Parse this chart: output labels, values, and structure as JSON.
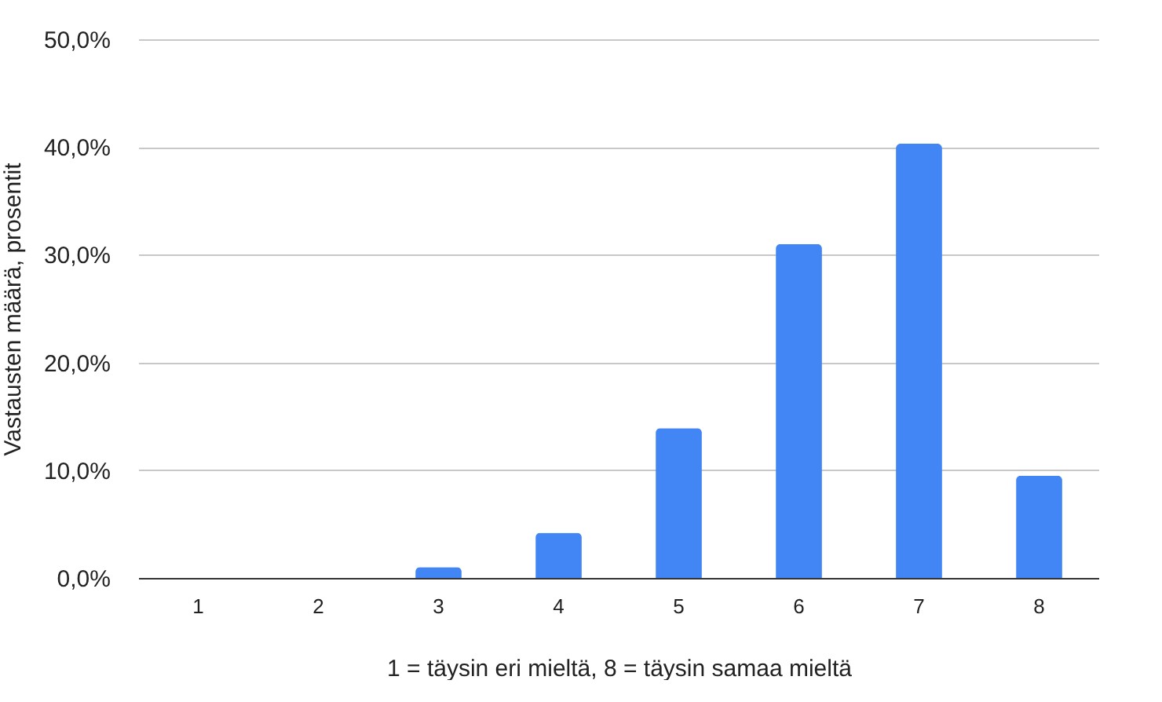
{
  "chart_data": {
    "type": "bar",
    "xlabel": "1 = täysin eri mieltä, 8 = täysin samaa mieltä",
    "ylabel": "Vastausten määrä, prosentit",
    "categories": [
      "1",
      "2",
      "3",
      "4",
      "5",
      "6",
      "7",
      "8"
    ],
    "values": [
      0,
      0,
      1.0,
      4.2,
      13.9,
      31.0,
      40.3,
      9.5
    ],
    "color": "#4285f4",
    "ylim": [
      0,
      50
    ],
    "yticks": [
      {
        "value": 0,
        "label": "0,0%"
      },
      {
        "value": 10,
        "label": "10,0%"
      },
      {
        "value": 20,
        "label": "20,0%"
      },
      {
        "value": 30,
        "label": "30,0%"
      },
      {
        "value": 40,
        "label": "40,0%"
      },
      {
        "value": 50,
        "label": "50,0%"
      }
    ],
    "grid": "y"
  }
}
